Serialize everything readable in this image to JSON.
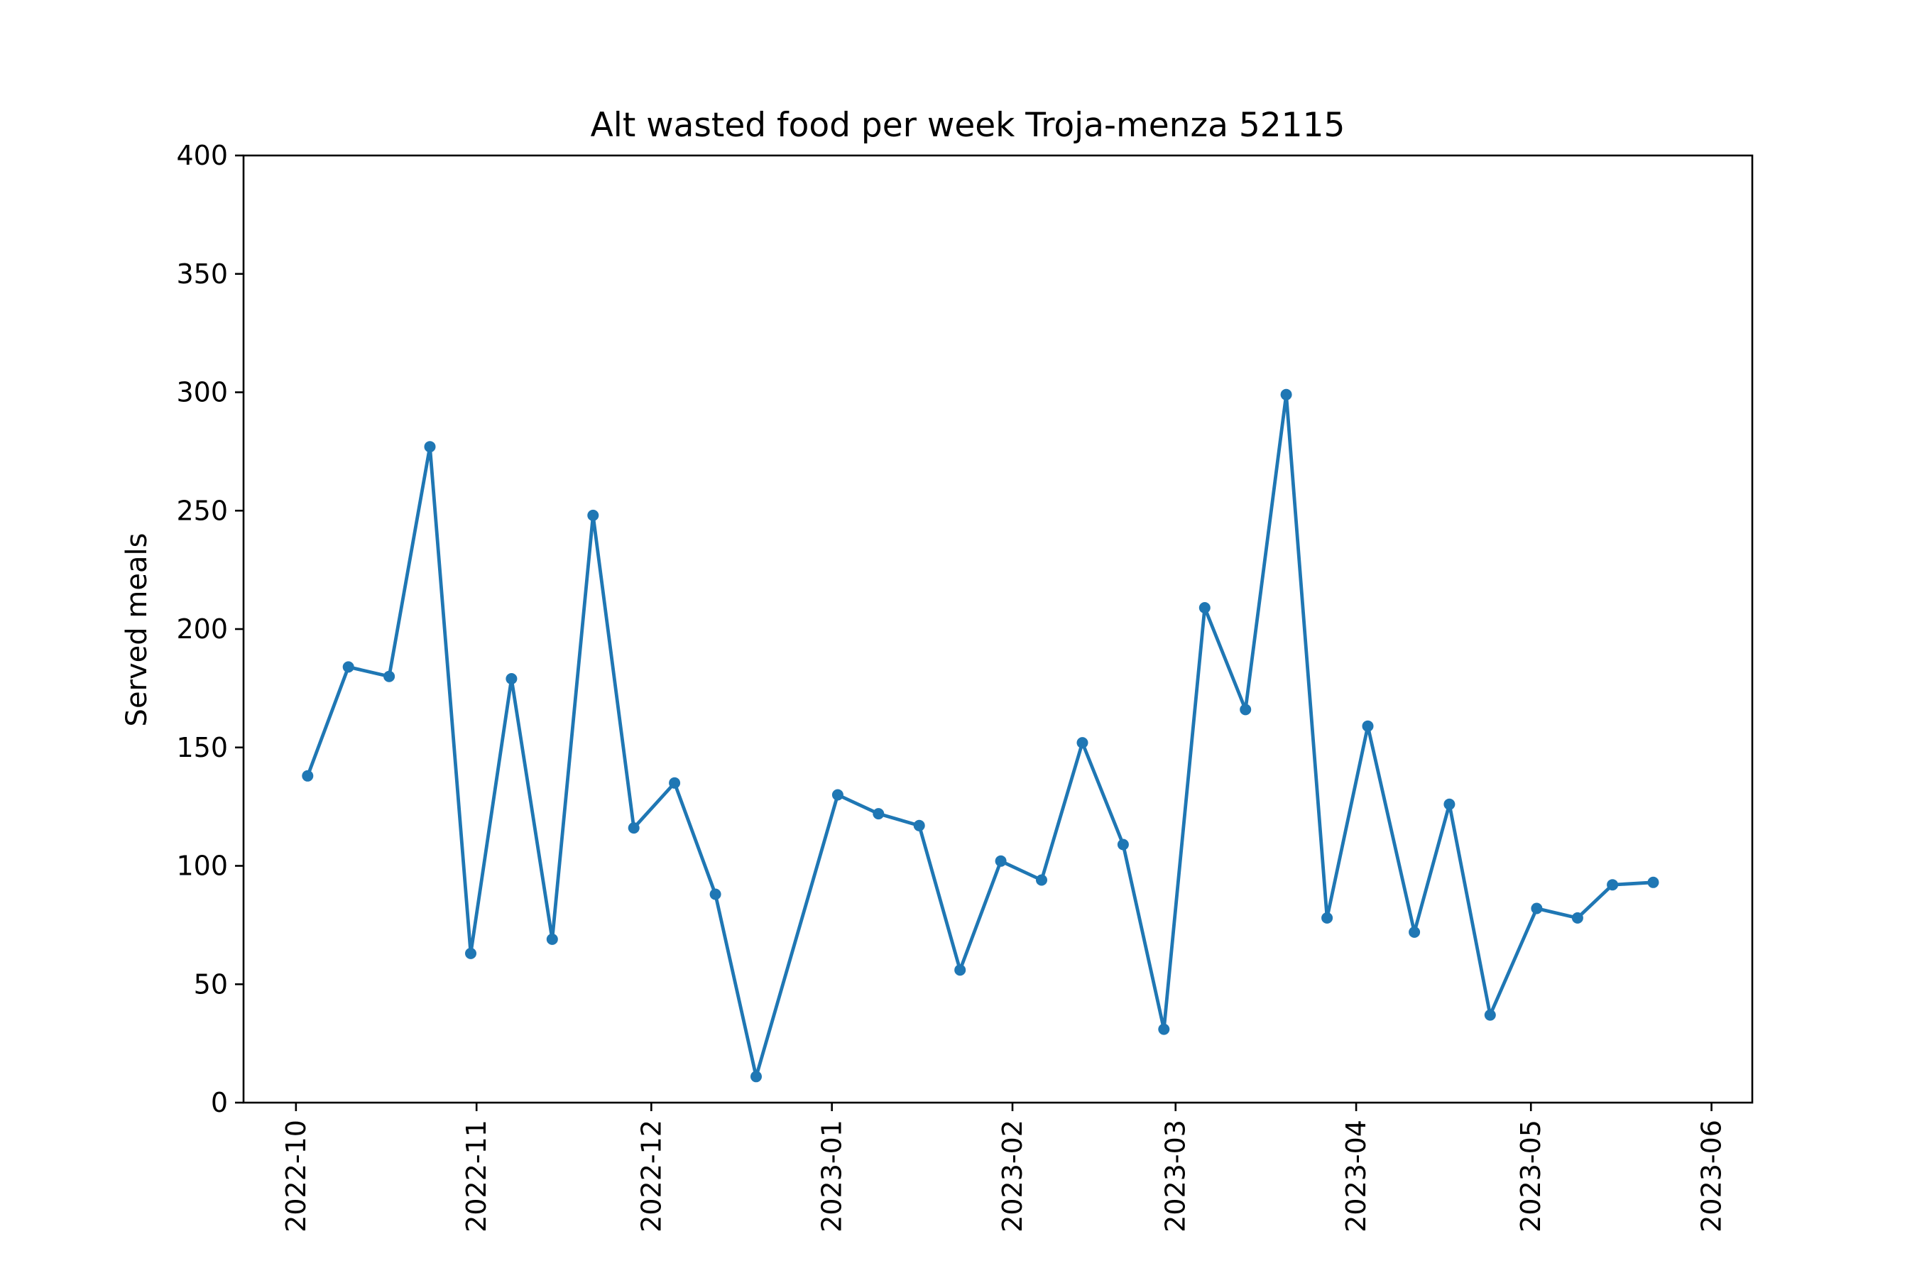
{
  "chart_data": {
    "type": "line",
    "title": "Alt wasted food per week Troja-menza 52115",
    "xlabel": "",
    "ylabel": "Served meals",
    "ylim": [
      0,
      400
    ],
    "xlim": [
      "2022-09-22",
      "2023-06-08"
    ],
    "yticks": [
      0,
      50,
      100,
      150,
      200,
      250,
      300,
      350,
      400
    ],
    "xticks": [
      "2022-10-01",
      "2022-11-01",
      "2022-12-01",
      "2023-01-01",
      "2023-02-01",
      "2023-03-01",
      "2023-04-01",
      "2023-05-01",
      "2023-06-01"
    ],
    "xtick_labels": [
      "2022-10",
      "2022-11",
      "2022-12",
      "2023-01",
      "2023-02",
      "2023-03",
      "2023-04",
      "2023-05",
      "2023-06"
    ],
    "grid": false,
    "marker": "circle",
    "color": "#1f77b4",
    "series": [
      {
        "x": [
          "2022-10-03",
          "2022-10-10",
          "2022-10-17",
          "2022-10-24",
          "2022-10-31",
          "2022-11-07",
          "2022-11-14",
          "2022-11-21",
          "2022-11-28",
          "2022-12-05",
          "2022-12-12",
          "2022-12-19",
          "2023-01-02",
          "2023-01-09",
          "2023-01-16",
          "2023-01-23",
          "2023-01-30",
          "2023-02-06",
          "2023-02-13",
          "2023-02-20",
          "2023-02-27",
          "2023-03-06",
          "2023-03-13",
          "2023-03-20",
          "2023-03-27",
          "2023-04-03",
          "2023-04-11",
          "2023-04-17",
          "2023-04-24",
          "2023-05-02",
          "2023-05-09",
          "2023-05-15",
          "2023-05-22"
        ],
        "values": [
          138,
          184,
          180,
          277,
          63,
          179,
          69,
          248,
          116,
          135,
          88,
          11,
          130,
          122,
          117,
          56,
          102,
          94,
          152,
          109,
          31,
          209,
          166,
          299,
          78,
          159,
          72,
          126,
          37,
          82,
          78,
          92,
          93
        ]
      }
    ]
  }
}
